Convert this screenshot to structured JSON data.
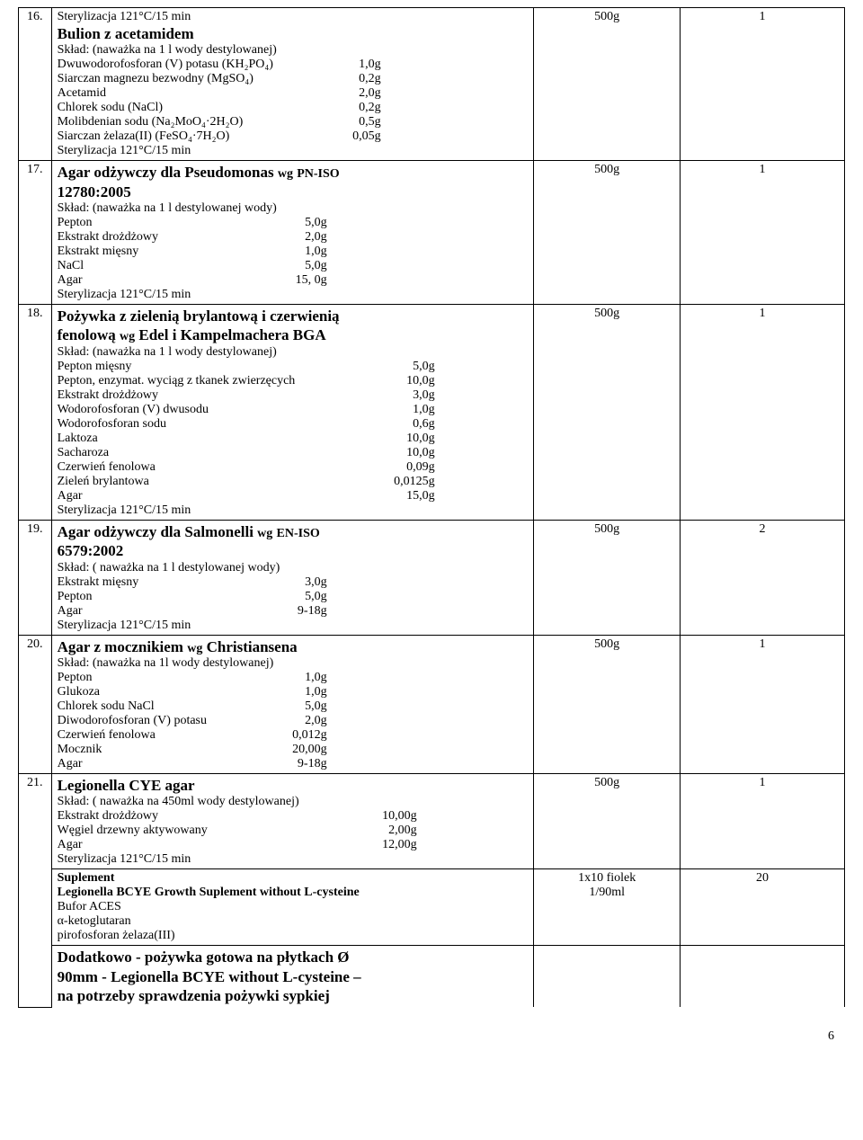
{
  "page_number": "6",
  "rows": [
    {
      "idx": "16.",
      "top_note": "Sterylizacja 121°C/15 min",
      "title": "Bulion z acetamidem",
      "sklad": "Skład: (naważka na 1 l wody destylowanej)",
      "components": [
        {
          "lbl": "Dwuwodorofosforan (V) potasu (KH₂PO₄)",
          "val": "1,0g"
        },
        {
          "lbl": "Siarczan magnezu bezwodny   (MgSO₄)",
          "val": "0,2g"
        },
        {
          "lbl": "Acetamid",
          "val": "2,0g"
        },
        {
          "lbl": "Chlorek sodu (NaCl)",
          "val": "0,2g"
        },
        {
          "lbl": "Molibdenian sodu (Na₂MoO₄·2H₂O)",
          "val": "0,5g"
        },
        {
          "lbl": "Siarczan żelaza(II) (FeSO₄·7H₂O)",
          "val": "0,05g"
        }
      ],
      "footer": "Sterylizacja 121°C/15 min",
      "amount": "500g",
      "qty": "1"
    },
    {
      "idx": "17.",
      "title_lines": [
        "Agar odżywczy dla Pseudomonas wg PN-ISO",
        "12780:2005"
      ],
      "sklad": "Skład: (naważka na 1 l destylowanej wody)",
      "components": [
        {
          "lbl": "Pepton",
          "val": "5,0g"
        },
        {
          "lbl": "Ekstrakt drożdżowy",
          "val": "2,0g"
        },
        {
          "lbl": "Ekstrakt mięsny",
          "val": "1,0g"
        },
        {
          "lbl": "NaCl",
          "val": "5,0g"
        },
        {
          "lbl": "Agar",
          "val": "15, 0g"
        }
      ],
      "footer": " Sterylizacja 121°C/15 min",
      "amount": "500g",
      "qty": "1"
    },
    {
      "idx": "18.",
      "title_lines": [
        "Pożywka z zielenią brylantową i czerwienią",
        "fenolową wg Edel i Kampelmachera BGA"
      ],
      "sklad": "Skład: (naważka na 1 l wody destylowanej)",
      "components": [
        {
          "lbl": "Pepton mięsny",
          "val": "5,0g"
        },
        {
          "lbl": "Pepton, enzymat. wyciąg z tkanek zwierzęcych",
          "val": "10,0g"
        },
        {
          "lbl": "Ekstrakt drożdżowy",
          "val": "3,0g"
        },
        {
          "lbl": "Wodorofosforan (V) dwusodu",
          "val": "1,0g"
        },
        {
          "lbl": "Wodorofosforan sodu",
          "val": "0,6g"
        },
        {
          "lbl": "Laktoza",
          "val": "10,0g"
        },
        {
          "lbl": "Sacharoza",
          "val": "10,0g"
        },
        {
          "lbl": "Czerwień fenolowa",
          "val": "0,09g"
        },
        {
          "lbl": "Zieleń brylantowa",
          "val": "0,0125g"
        },
        {
          "lbl": "Agar",
          "val": "15,0g"
        }
      ],
      "footer": "Sterylizacja 121°C/15 min",
      "amount": "500g",
      "qty": "1"
    },
    {
      "idx": "19.",
      "title_lines": [
        "Agar odżywczy dla Salmonelli wg EN-ISO",
        "6579:2002"
      ],
      "sklad": "Skład: ( naważka  na 1 l destylowanej wody)",
      "components": [
        {
          "lbl": "Ekstrakt mięsny",
          "val": "3,0g"
        },
        {
          "lbl": "Pepton",
          "val": "5,0g"
        },
        {
          "lbl": "Agar",
          "val": "9-18g"
        }
      ],
      "footer": "Sterylizacja 121°C/15 min",
      "amount": "500g",
      "qty": "2"
    },
    {
      "idx": "20.",
      "title": "Agar z mocznikiem wg Christiansena",
      "sklad": "Skład: (naważka na 1l wody destylowanej)",
      "components": [
        {
          "lbl": "Pepton",
          "val": "1,0g"
        },
        {
          "lbl": "Glukoza",
          "val": "1,0g"
        },
        {
          "lbl": "Chlorek sodu NaCl",
          "val": "5,0g"
        },
        {
          "lbl": "Diwodorofosforan (V) potasu",
          "val": "2,0g"
        },
        {
          "lbl": "Czerwień fenolowa",
          "val": "0,012g"
        },
        {
          "lbl": "Mocznik",
          "val": "20,00g"
        },
        {
          "lbl": "Agar",
          "val": "9-18g"
        }
      ],
      "amount": "500g",
      "qty": "1"
    }
  ],
  "row21": {
    "idx": "21.",
    "block1": {
      "title": "Legionella CYE agar",
      "sklad": "Skład: ( naważka na 450ml wody destylowanej)",
      "components": [
        {
          "lbl": "Ekstrakt drożdżowy",
          "val": "10,00g"
        },
        {
          "lbl": "Węgiel drzewny aktywowany",
          "val": "2,00g"
        },
        {
          "lbl": "Agar",
          "val": "12,00g"
        }
      ],
      "footer": "Sterylizacja 121°C/15 min",
      "amount": "500g",
      "qty": "1"
    },
    "block2": {
      "supl": "Suplement",
      "bold_line": "Legionella  BCYE Growth Suplement without L-cysteine",
      "lines": [
        "Bufor ACES",
        "α-ketoglutaran",
        "pirofosforan żelaza(III)"
      ],
      "amount_l1": "1x10 fiolek",
      "amount_l2": "1/90ml",
      "qty": "20"
    },
    "block3": {
      "lines": [
        "Dodatkowo - pożywka gotowa na płytkach  Ø",
        "90mm - Legionella  BCYE without L-cysteine –",
        "na potrzeby sprawdzenia pożywki sypkiej"
      ]
    }
  },
  "val_widths": {
    "r16": "280px",
    "r17": "220px",
    "r18": "340px",
    "r19": "220px",
    "r20": "220px",
    "r21": "320px"
  }
}
